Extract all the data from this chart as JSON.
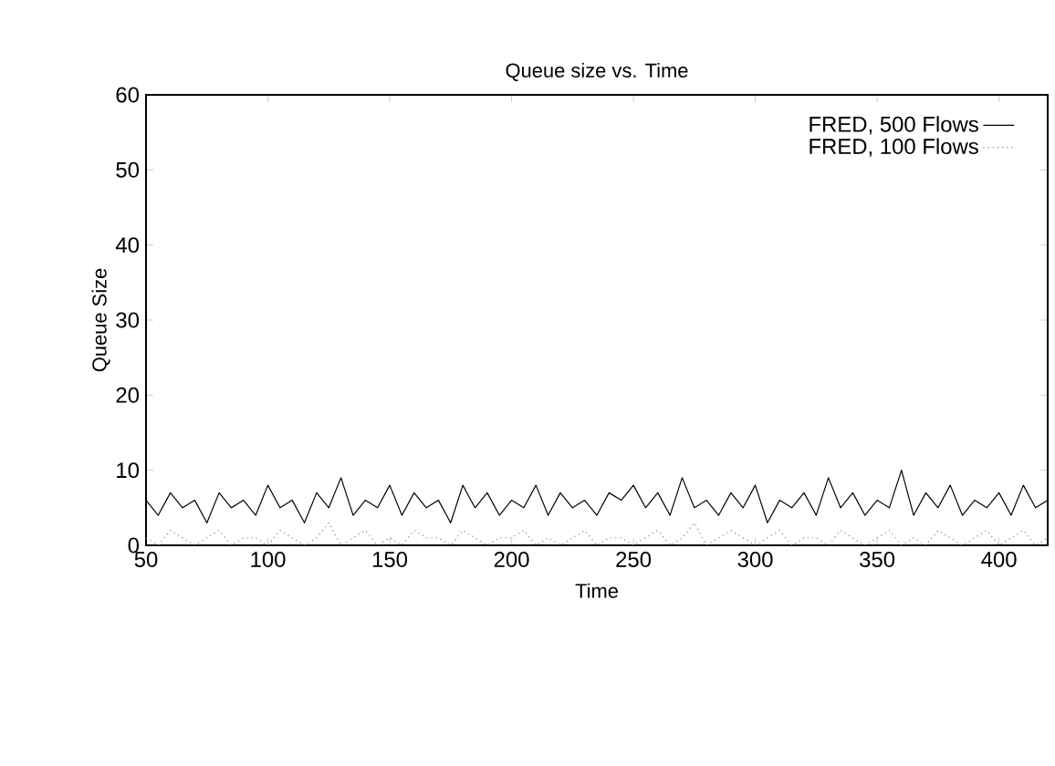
{
  "chart_data": {
    "type": "line",
    "title": "Queue size vs. Time",
    "xlabel": "Time",
    "ylabel": "Queue Size",
    "x": [
      50,
      55,
      60,
      65,
      70,
      75,
      80,
      85,
      90,
      95,
      100,
      105,
      110,
      115,
      120,
      125,
      130,
      135,
      140,
      145,
      150,
      155,
      160,
      165,
      170,
      175,
      180,
      185,
      190,
      195,
      200,
      205,
      210,
      215,
      220,
      225,
      230,
      235,
      240,
      245,
      250,
      255,
      260,
      265,
      270,
      275,
      280,
      285,
      290,
      295,
      300,
      305,
      310,
      315,
      320,
      325,
      330,
      335,
      340,
      345,
      350,
      355,
      360,
      365,
      370,
      375,
      380,
      385,
      390,
      395,
      400,
      405,
      410,
      415,
      420
    ],
    "series": [
      {
        "name": "FRED, 500 Flows",
        "color": "#000000",
        "line_style": "solid",
        "values": [
          6,
          4,
          7,
          5,
          6,
          3,
          7,
          5,
          6,
          4,
          8,
          5,
          6,
          3,
          7,
          5,
          9,
          4,
          6,
          5,
          8,
          4,
          7,
          5,
          6,
          3,
          8,
          5,
          7,
          4,
          6,
          5,
          8,
          4,
          7,
          5,
          6,
          4,
          7,
          6,
          8,
          5,
          7,
          4,
          9,
          5,
          6,
          4,
          7,
          5,
          8,
          3,
          6,
          5,
          7,
          4,
          9,
          5,
          7,
          4,
          6,
          5,
          10,
          4,
          7,
          5,
          8,
          4,
          6,
          5,
          7,
          4,
          8,
          5,
          6
        ]
      },
      {
        "name": "FRED, 100 Flows",
        "color": "#808080",
        "line_style": "dotted",
        "values": [
          1,
          0,
          2,
          1,
          0,
          1,
          2,
          0,
          1,
          1,
          0,
          2,
          1,
          0,
          1,
          3,
          0,
          1,
          2,
          0,
          1,
          0,
          2,
          1,
          1,
          0,
          2,
          1,
          0,
          1,
          1,
          2,
          0,
          1,
          0,
          1,
          2,
          0,
          1,
          1,
          0,
          1,
          2,
          0,
          1,
          3,
          0,
          1,
          2,
          1,
          0,
          1,
          2,
          0,
          1,
          1,
          0,
          2,
          1,
          0,
          1,
          2,
          0,
          1,
          0,
          2,
          1,
          0,
          1,
          2,
          0,
          1,
          2,
          0,
          1
        ]
      }
    ],
    "xlim": [
      50,
      420
    ],
    "ylim": [
      0,
      60
    ],
    "xticks": [
      50,
      100,
      150,
      200,
      250,
      300,
      350,
      400
    ],
    "yticks": [
      0,
      10,
      20,
      30,
      40,
      50,
      60
    ],
    "grid": false,
    "legend": "top right",
    "marker": "none"
  }
}
